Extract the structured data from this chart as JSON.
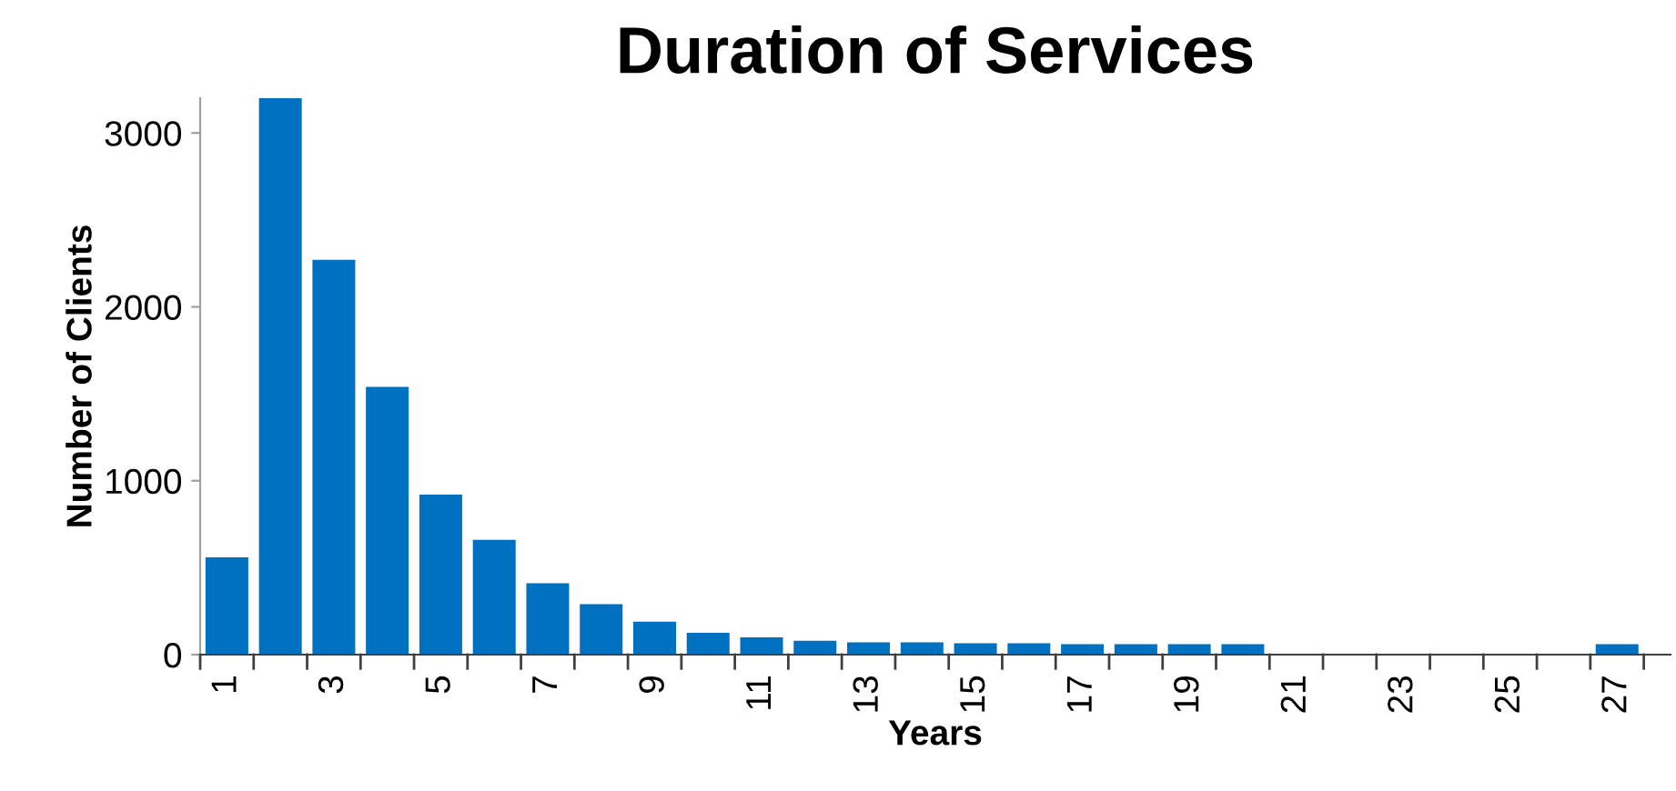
{
  "chart_data": {
    "type": "bar",
    "title": "Duration of Services",
    "xlabel": "Years",
    "ylabel": "Number of Clients",
    "categories": [
      "1",
      null,
      "3",
      null,
      "5",
      null,
      "7",
      null,
      "9",
      null,
      "11",
      null,
      "13",
      null,
      "15",
      null,
      "17",
      null,
      "19",
      null,
      "21",
      null,
      "23",
      null,
      "25",
      null,
      "27"
    ],
    "values": [
      560,
      3200,
      2270,
      1540,
      920,
      660,
      410,
      290,
      190,
      125,
      100,
      80,
      70,
      70,
      65,
      65,
      60,
      60,
      60,
      60,
      0,
      0,
      0,
      0,
      0,
      0,
      60
    ],
    "color": "#0070c0",
    "ylim": [
      0,
      3200
    ],
    "yticks": [
      0,
      1000,
      2000,
      3000
    ],
    "grid": false,
    "legend": false
  }
}
